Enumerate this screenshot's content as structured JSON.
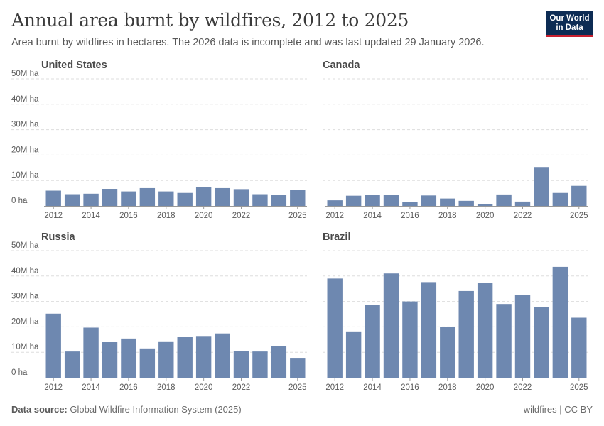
{
  "header": {
    "title": "Annual area burnt by wildfires, 2012 to 2025",
    "subtitle": "Area burnt by wildfires in hectares. The 2026 data is incomplete and was last updated 29 January 2026.",
    "logo_line1": "Our World",
    "logo_line2": "in Data"
  },
  "footer": {
    "source_label": "Data source:",
    "source_text": "Global Wildfire Information System (2025)",
    "right_text": "wildfires | CC BY"
  },
  "colors": {
    "bar": "#6e88b0",
    "grid": "#dddddd",
    "text": "#5b5b5b"
  },
  "chart_data": [
    {
      "type": "bar",
      "title": "United States",
      "x": [
        2012,
        2013,
        2014,
        2015,
        2016,
        2017,
        2018,
        2019,
        2020,
        2021,
        2022,
        2023,
        2024,
        2025
      ],
      "values": [
        6.0,
        4.6,
        4.8,
        6.7,
        5.7,
        7.0,
        5.7,
        5.1,
        7.3,
        7.0,
        6.6,
        4.6,
        4.2,
        6.4
      ],
      "unit": "M ha",
      "ylim": [
        0,
        50
      ],
      "yticks": [
        "0 ha",
        "10M ha",
        "20M ha",
        "30M ha",
        "40M ha",
        "50M ha"
      ],
      "xticks": [
        "2012",
        "2014",
        "2016",
        "2018",
        "2020",
        "2022",
        "2025"
      ],
      "grid": true
    },
    {
      "type": "bar",
      "title": "Canada",
      "x": [
        2012,
        2013,
        2014,
        2015,
        2016,
        2017,
        2018,
        2019,
        2020,
        2021,
        2022,
        2023,
        2024,
        2025
      ],
      "values": [
        2.2,
        4.0,
        4.4,
        4.3,
        1.6,
        4.1,
        2.9,
        2.0,
        0.6,
        4.5,
        1.7,
        15.3,
        5.1,
        7.9
      ],
      "unit": "M ha",
      "ylim": [
        0,
        50
      ],
      "xticks": [
        "2012",
        "2014",
        "2016",
        "2018",
        "2020",
        "2022",
        "2025"
      ],
      "grid": true
    },
    {
      "type": "bar",
      "title": "Russia",
      "x": [
        2012,
        2013,
        2014,
        2015,
        2016,
        2017,
        2018,
        2019,
        2020,
        2021,
        2022,
        2023,
        2024,
        2025
      ],
      "values": [
        25.2,
        10.3,
        19.7,
        14.2,
        15.4,
        11.5,
        14.3,
        16.1,
        16.4,
        17.4,
        10.5,
        10.3,
        12.5,
        7.8
      ],
      "unit": "M ha",
      "ylim": [
        0,
        50
      ],
      "yticks": [
        "0 ha",
        "10M ha",
        "20M ha",
        "30M ha",
        "40M ha",
        "50M ha"
      ],
      "xticks": [
        "2012",
        "2014",
        "2016",
        "2018",
        "2020",
        "2022",
        "2025"
      ],
      "grid": true
    },
    {
      "type": "bar",
      "title": "Brazil",
      "x": [
        2012,
        2013,
        2014,
        2015,
        2016,
        2017,
        2018,
        2019,
        2020,
        2021,
        2022,
        2023,
        2024,
        2025
      ],
      "values": [
        39.0,
        18.2,
        28.6,
        41.0,
        30.0,
        37.6,
        19.9,
        34.1,
        37.3,
        29.0,
        32.6,
        27.7,
        43.6,
        23.6
      ],
      "unit": "M ha",
      "ylim": [
        0,
        50
      ],
      "xticks": [
        "2012",
        "2014",
        "2016",
        "2018",
        "2020",
        "2022",
        "2025"
      ],
      "grid": true
    }
  ]
}
